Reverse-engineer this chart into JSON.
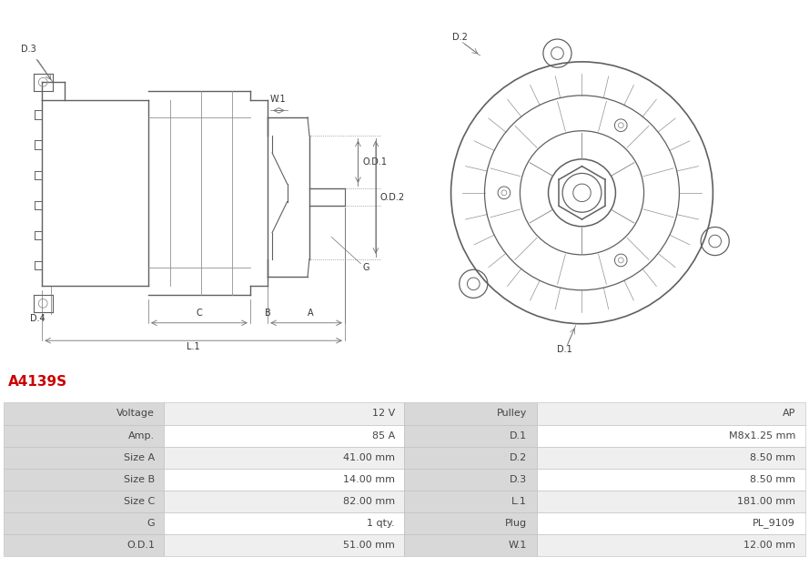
{
  "title": "A4139S",
  "title_color": "#cc0000",
  "table_rows": [
    [
      "Voltage",
      "12 V",
      "Pulley",
      "AP"
    ],
    [
      "Amp.",
      "85 A",
      "D.1",
      "M8x1.25 mm"
    ],
    [
      "Size A",
      "41.00 mm",
      "D.2",
      "8.50 mm"
    ],
    [
      "Size B",
      "14.00 mm",
      "D.3",
      "8.50 mm"
    ],
    [
      "Size C",
      "82.00 mm",
      "L.1",
      "181.00 mm"
    ],
    [
      "G",
      "1 qty.",
      "Plug",
      "PL_9109"
    ],
    [
      "O.D.1",
      "51.00 mm",
      "W.1",
      "12.00 mm"
    ]
  ],
  "header_bg": "#d8d8d8",
  "row_bg_odd": "#efefef",
  "row_bg_even": "#ffffff",
  "text_color": "#444444",
  "border_color": "#bbbbbb",
  "font_size_table": 8.0,
  "font_size_title": 11,
  "lc": "#606060",
  "lc2": "#909090",
  "lc_dim": "#707070"
}
